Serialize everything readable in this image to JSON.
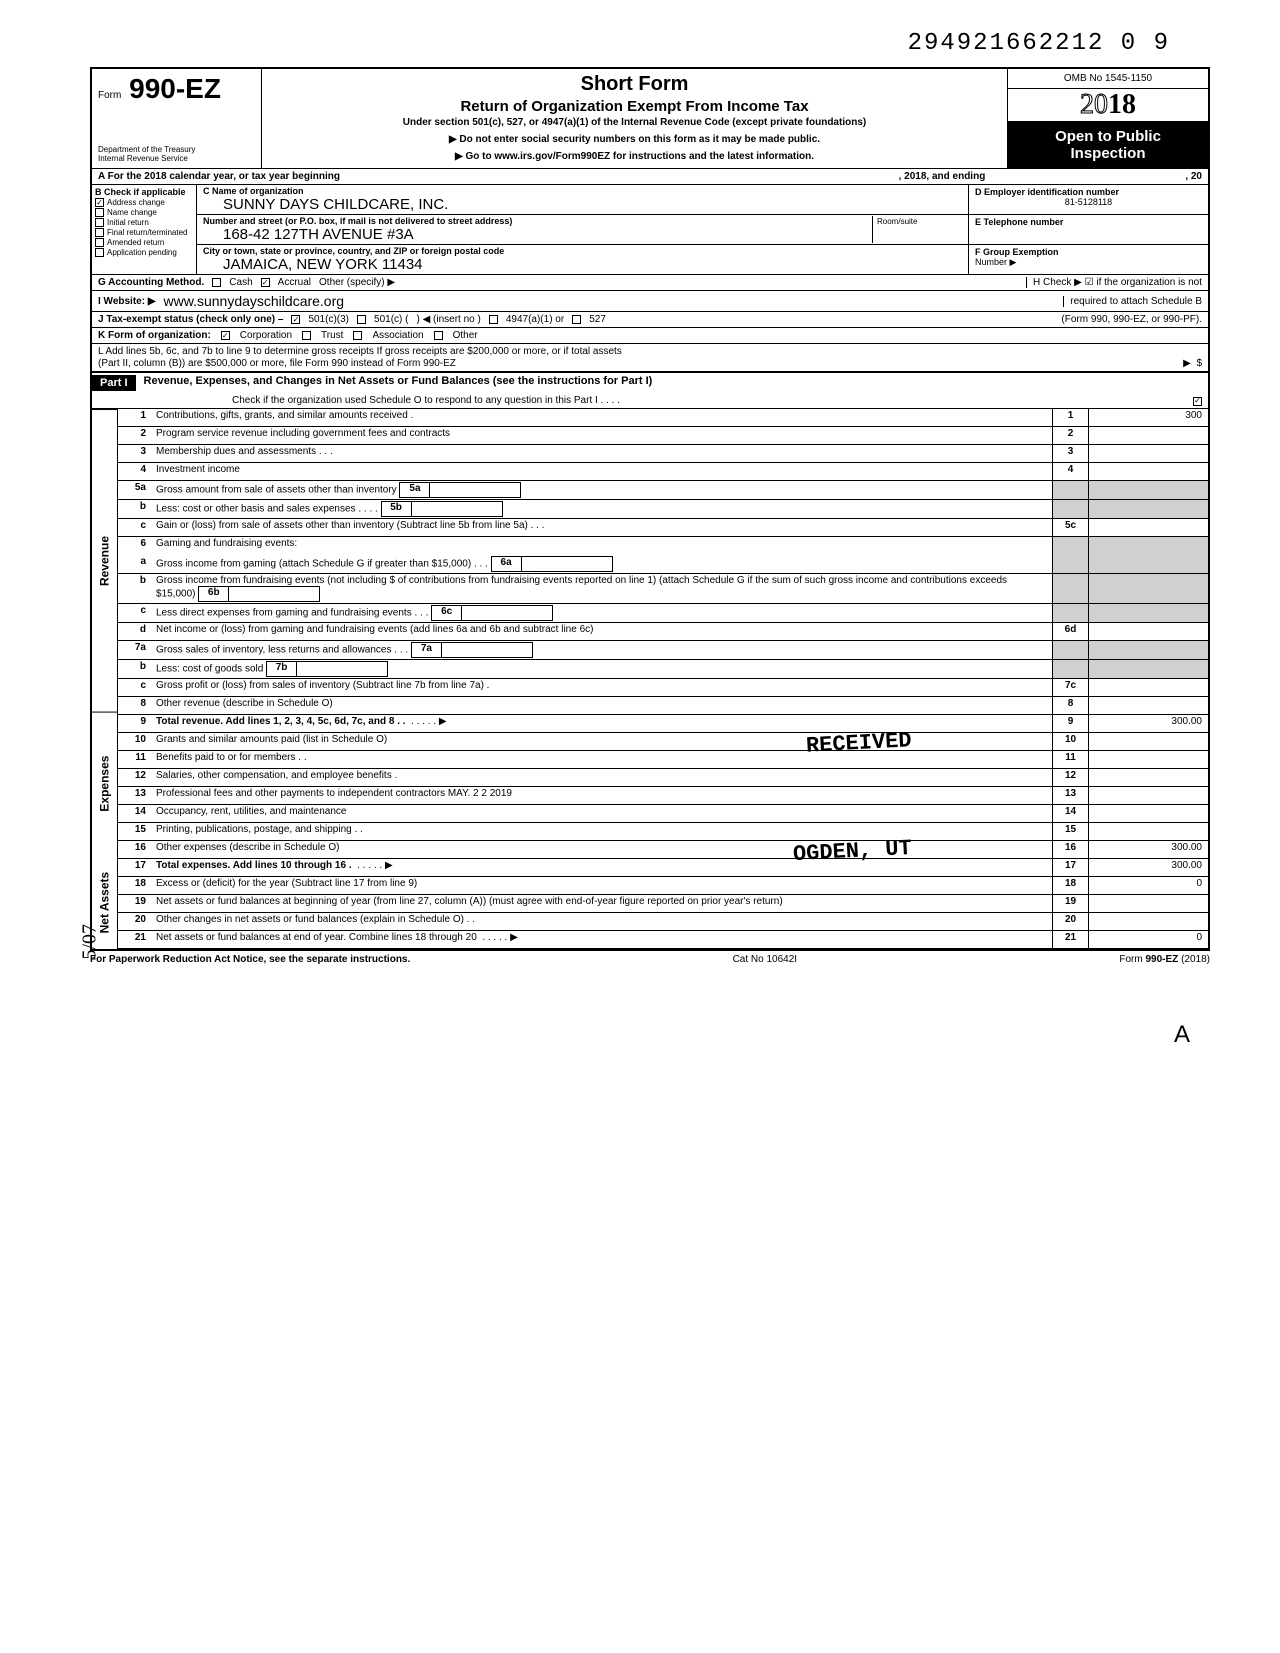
{
  "top_number": "294921662212 0  9",
  "form": {
    "prefix": "Form",
    "number": "990-EZ",
    "dept1": "Department of the Treasury",
    "dept2": "Internal Revenue Service"
  },
  "title": {
    "short_form": "Short Form",
    "main": "Return of Organization Exempt From Income Tax",
    "sub": "Under section 501(c), 527, or 4947(a)(1) of the Internal Revenue Code (except private foundations)",
    "warn": "▶ Do not enter social security numbers on this form as it may be made public.",
    "link": "▶ Go to www.irs.gov/Form990EZ for instructions and the latest information."
  },
  "right_header": {
    "omb": "OMB No 1545-1150",
    "year_outline": "20",
    "year_solid": "18",
    "open1": "Open to Public",
    "open2": "Inspection"
  },
  "row_a": {
    "left": "A  For the 2018 calendar year, or tax year beginning",
    "mid": ", 2018, and ending",
    "right": ", 20"
  },
  "b_checks": {
    "head": "B  Check if applicable",
    "items": [
      {
        "label": "Address change",
        "checked": true
      },
      {
        "label": "Name change",
        "checked": false
      },
      {
        "label": "Initial return",
        "checked": false
      },
      {
        "label": "Final return/terminated",
        "checked": false
      },
      {
        "label": "Amended return",
        "checked": false
      },
      {
        "label": "Application pending",
        "checked": false
      }
    ]
  },
  "c_block": {
    "c_lbl": "C  Name of organization",
    "c_val": "SUNNY DAYS CHILDCARE, INC.",
    "street_lbl": "Number and street (or P.O. box, if mail is not delivered to street address)",
    "street_val": "168-42 127TH AVENUE #3A",
    "room_lbl": "Room/suite",
    "city_lbl": "City or town, state or province, country, and ZIP or foreign postal code",
    "city_val": "JAMAICA, NEW YORK 11434"
  },
  "d_block": {
    "d_lbl": "D Employer identification number",
    "d_val": "81-5128118",
    "e_lbl": "E  Telephone number",
    "f_lbl": "F  Group Exemption",
    "f_lbl2": "Number ▶"
  },
  "g_row": {
    "g": "G  Accounting Method.",
    "cash": "Cash",
    "accrual": "Accrual",
    "other": "Other (specify) ▶",
    "h": "H  Check ▶ ☑ if the organization is not"
  },
  "i_row": {
    "i": "I   Website: ▶",
    "url": "www.sunnydayschildcare.org",
    "h2": "required to attach Schedule B"
  },
  "j_row": {
    "j": "J  Tax-exempt status (check only one) – ",
    "c3": "501(c)(3)",
    "c": "501(c) (",
    "insert": ") ◀ (insert no )",
    "a1": "4947(a)(1) or",
    "s527": "527",
    "right": "(Form 990, 990-EZ, or 990-PF)."
  },
  "k_row": {
    "k": "K  Form of organization:",
    "corp": "Corporation",
    "trust": "Trust",
    "assoc": "Association",
    "other": "Other"
  },
  "l_row": {
    "l1": "L  Add lines 5b, 6c, and 7b to line 9 to determine gross receipts  If gross receipts are $200,000 or more, or if total assets",
    "l2": "(Part II, column (B)) are $500,000 or more, file Form 990 instead of Form 990-EZ",
    "arrow": "▶",
    "dollar": "$"
  },
  "part1": {
    "label": "Part I",
    "title": "Revenue, Expenses, and Changes in Net Assets or Fund Balances (see the instructions for Part I)",
    "check_line": "Check if the organization used Schedule O to respond to any question in this Part I .  .  .  ."
  },
  "sidebars": {
    "revenue": "Revenue",
    "expenses": "Expenses",
    "netassets": "Net Assets"
  },
  "lines": [
    {
      "n": "1",
      "desc": "Contributions, gifts, grants, and similar amounts received .",
      "rn": "1",
      "rv": "300"
    },
    {
      "n": "2",
      "desc": "Program service revenue including government fees and contracts",
      "rn": "2",
      "rv": ""
    },
    {
      "n": "3",
      "desc": "Membership dues and assessments .  .  .",
      "rn": "3",
      "rv": ""
    },
    {
      "n": "4",
      "desc": "Investment income",
      "rn": "4",
      "rv": ""
    },
    {
      "n": "5a",
      "desc": "Gross amount from sale of assets other than inventory",
      "inner": "5a",
      "rn": "",
      "rv": "",
      "shaded": true
    },
    {
      "n": "b",
      "desc": "Less: cost or other basis and sales expenses .  .  .  .",
      "inner": "5b",
      "rn": "",
      "rv": "",
      "shaded": true
    },
    {
      "n": "c",
      "desc": "Gain or (loss) from sale of assets other than inventory (Subtract line 5b from line 5a)  .  .  .",
      "rn": "5c",
      "rv": ""
    },
    {
      "n": "6",
      "desc": "Gaming and fundraising events:",
      "rn": "",
      "rv": "",
      "shaded": true,
      "nb": true
    },
    {
      "n": "a",
      "desc": "Gross income from gaming (attach Schedule G if greater than $15,000) .  .  .",
      "inner": "6a",
      "rn": "",
      "rv": "",
      "shaded": true
    },
    {
      "n": "b",
      "desc": "Gross income from fundraising events (not including  $                          of contributions from fundraising events reported on line 1) (attach Schedule G if the sum of such gross income and contributions exceeds $15,000)",
      "inner": "6b",
      "rn": "",
      "rv": "",
      "shaded": true
    },
    {
      "n": "c",
      "desc": "Less  direct expenses from gaming and fundraising events  .  .  .",
      "inner": "6c",
      "rn": "",
      "rv": "",
      "shaded": true
    },
    {
      "n": "d",
      "desc": "Net income or (loss) from gaming and fundraising events (add lines 6a and 6b and subtract line 6c)",
      "rn": "6d",
      "rv": ""
    },
    {
      "n": "7a",
      "desc": "Gross sales of inventory, less returns and allowances  .  .  .",
      "inner": "7a",
      "rn": "",
      "rv": "",
      "shaded": true
    },
    {
      "n": "b",
      "desc": "Less: cost of goods sold",
      "inner": "7b",
      "rn": "",
      "rv": "",
      "shaded": true
    },
    {
      "n": "c",
      "desc": "Gross profit or (loss) from sales of inventory (Subtract line 7b from line 7a)  .",
      "rn": "7c",
      "rv": ""
    },
    {
      "n": "8",
      "desc": "Other revenue (describe in Schedule O)",
      "rn": "8",
      "rv": ""
    },
    {
      "n": "9",
      "desc": "Total revenue. Add lines 1, 2, 3, 4, 5c, 6d, 7c, and 8  .  .",
      "rn": "9",
      "rv": "300.00",
      "bold": true,
      "arrow": true
    }
  ],
  "exp_lines": [
    {
      "n": "10",
      "desc": "Grants and similar amounts paid (list in Schedule O)",
      "rn": "10",
      "rv": "",
      "stamp": "RECEIVED"
    },
    {
      "n": "11",
      "desc": "Benefits paid to or for members  .  .",
      "rn": "11",
      "rv": ""
    },
    {
      "n": "12",
      "desc": "Salaries, other compensation, and employee benefits .",
      "rn": "12",
      "rv": ""
    },
    {
      "n": "13",
      "desc": "Professional fees and other payments to independent contractors MAY. 2 2 2019",
      "rn": "13",
      "rv": "",
      "stamp_date": true
    },
    {
      "n": "14",
      "desc": "Occupancy, rent, utilities, and maintenance",
      "rn": "14",
      "rv": ""
    },
    {
      "n": "15",
      "desc": "Printing, publications, postage, and shipping .  .",
      "rn": "15",
      "rv": ""
    },
    {
      "n": "16",
      "desc": "Other expenses (describe in Schedule O)",
      "rn": "16",
      "rv": "300.00",
      "stamp": "OGDEN, UT"
    },
    {
      "n": "17",
      "desc": "Total expenses. Add lines 10 through 16  .",
      "rn": "17",
      "rv": "300.00",
      "bold": true,
      "arrow": true
    }
  ],
  "na_lines": [
    {
      "n": "18",
      "desc": "Excess or (deficit) for the year (Subtract line 17 from line 9)",
      "rn": "18",
      "rv": "0"
    },
    {
      "n": "19",
      "desc": "Net assets or fund balances at beginning of year (from line 27, column (A)) (must agree with end-of-year figure reported on prior year's return)",
      "rn": "19",
      "rv": ""
    },
    {
      "n": "20",
      "desc": "Other changes in net assets or fund balances (explain in Schedule O) .  .",
      "rn": "20",
      "rv": ""
    },
    {
      "n": "21",
      "desc": "Net assets or fund balances at end of year. Combine lines 18 through 20",
      "rn": "21",
      "rv": "0",
      "arrow": true
    }
  ],
  "footer": {
    "left": "For Paperwork Reduction Act Notice, see the separate instructions.",
    "cat": "Cat  No  10642I",
    "form": "Form 990-EZ (2018)"
  },
  "scribble": "5/07",
  "corner": "A"
}
